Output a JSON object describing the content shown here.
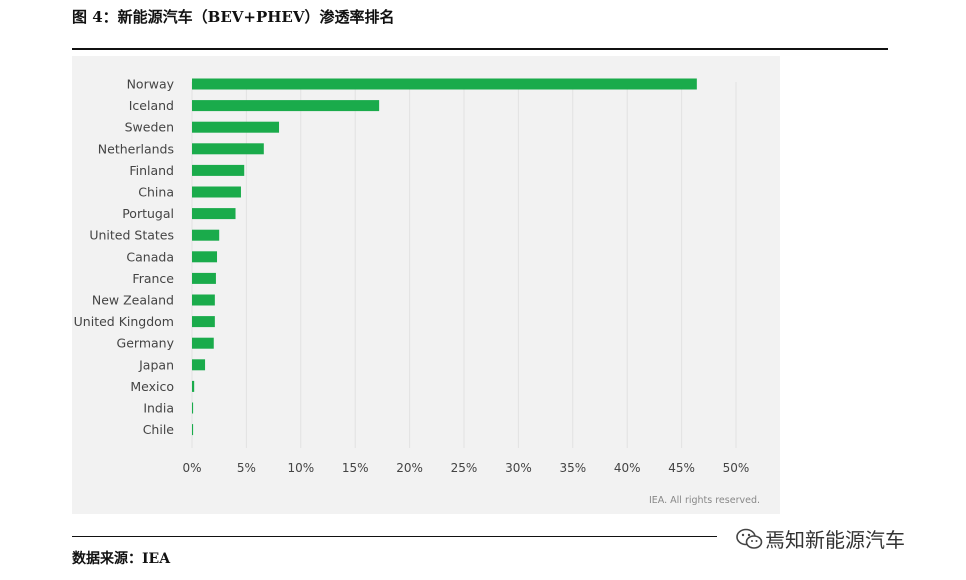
{
  "figure": {
    "title": "图 4：新能源汽车（BEV+PHEV）渗透率排名",
    "source": "数据来源：IEA",
    "watermark": "焉知新能源汽车"
  },
  "chart_data": {
    "type": "bar",
    "orientation": "horizontal",
    "categories": [
      "Norway",
      "Iceland",
      "Sweden",
      "Netherlands",
      "Finland",
      "China",
      "Portugal",
      "United States",
      "Canada",
      "France",
      "New Zealand",
      "United Kingdom",
      "Germany",
      "Japan",
      "Mexico",
      "India",
      "Chile"
    ],
    "values": [
      46.4,
      17.2,
      8.0,
      6.6,
      4.8,
      4.5,
      4.0,
      2.5,
      2.3,
      2.2,
      2.1,
      2.1,
      2.0,
      1.2,
      0.2,
      0.1,
      0.1
    ],
    "unit": "%",
    "xlim": [
      0,
      50
    ],
    "xticks": [
      0,
      5,
      10,
      15,
      20,
      25,
      30,
      35,
      40,
      45,
      50
    ],
    "xtick_labels": [
      "0%",
      "5%",
      "10%",
      "15%",
      "20%",
      "25%",
      "30%",
      "35%",
      "40%",
      "45%",
      "50%"
    ],
    "grid": true,
    "bar_color": "#1aab4b",
    "credit": "IEA. All rights reserved."
  }
}
